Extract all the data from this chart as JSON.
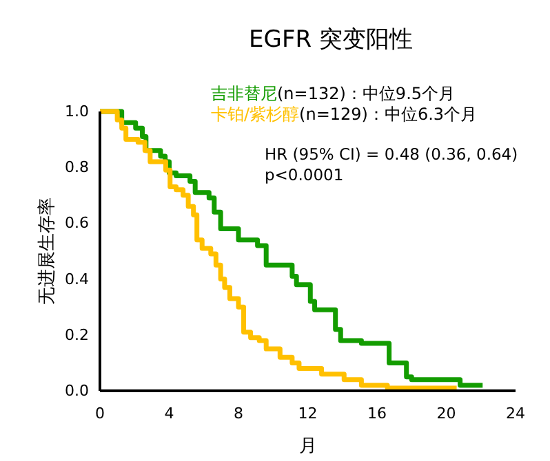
{
  "chart_data": {
    "type": "step",
    "title": "EGFR 突变阳性",
    "xlabel": "月",
    "ylabel": "无进展生存率",
    "xlim": [
      0,
      24
    ],
    "xticks": [
      0,
      4,
      8,
      12,
      16,
      20,
      24
    ],
    "ylim": [
      0,
      1
    ],
    "yticks": [
      {
        "value": 0,
        "label": "0.0"
      },
      {
        "value": 0.2,
        "label": "0.2"
      },
      {
        "value": 0.4,
        "label": "0.4"
      },
      {
        "value": 0.6,
        "label": "0.6"
      },
      {
        "value": 0.8,
        "label": "0.8"
      },
      {
        "value": 1,
        "label": "1.0"
      }
    ],
    "grid": false,
    "legend": "top",
    "line_style": "solid",
    "marker": "none",
    "annotations": [
      "(n=132)：中位9.5个月",
      "(n=129)：中位6.3个月",
      "HR (95% CI) = 0.48 (0.36, 0.64)",
      "p<0.0001"
    ],
    "series": [
      {
        "name": "吉非替尼",
        "color": "#139c00",
        "x": [
          0,
          1.26,
          2.06,
          2.45,
          2.66,
          3.5,
          3.77,
          4.0,
          4.4,
          5.2,
          5.5,
          6.3,
          6.6,
          6.97,
          8.0,
          9.1,
          9.6,
          11.1,
          11.35,
          12.15,
          12.4,
          13.6,
          13.9,
          15.1,
          16.7,
          17.7,
          18.0,
          20.8,
          22.1
        ],
        "values": [
          1.0,
          0.96,
          0.94,
          0.91,
          0.86,
          0.84,
          0.82,
          0.78,
          0.77,
          0.75,
          0.71,
          0.69,
          0.64,
          0.58,
          0.54,
          0.52,
          0.45,
          0.41,
          0.38,
          0.32,
          0.29,
          0.22,
          0.18,
          0.17,
          0.1,
          0.05,
          0.04,
          0.02,
          0.02
        ]
      },
      {
        "name": "卡铂/紫杉醇",
        "color": "#ffc000",
        "x": [
          0,
          1.0,
          1.26,
          1.5,
          2.2,
          2.6,
          2.9,
          3.8,
          4.05,
          4.4,
          4.8,
          5.1,
          5.4,
          5.6,
          5.9,
          6.4,
          6.7,
          6.97,
          7.2,
          7.5,
          8.0,
          8.3,
          8.7,
          9.2,
          9.6,
          10.4,
          11.1,
          11.5,
          12.8,
          14.1,
          15.1,
          16.6,
          20.6
        ],
        "values": [
          1.0,
          0.97,
          0.94,
          0.9,
          0.89,
          0.86,
          0.82,
          0.79,
          0.73,
          0.72,
          0.7,
          0.66,
          0.63,
          0.54,
          0.51,
          0.49,
          0.45,
          0.4,
          0.37,
          0.33,
          0.3,
          0.21,
          0.19,
          0.18,
          0.15,
          0.12,
          0.1,
          0.08,
          0.06,
          0.04,
          0.02,
          0.01,
          0.01
        ]
      }
    ]
  }
}
